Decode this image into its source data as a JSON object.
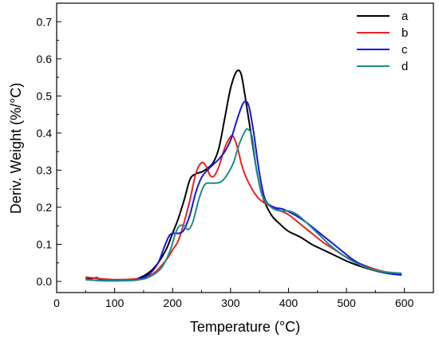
{
  "chart_data": {
    "type": "line",
    "title": "",
    "xlabel": "Temperature (°C)",
    "ylabel": "Deriv. Weight (%/°C)",
    "xlim": [
      0,
      650
    ],
    "ylim": [
      -0.03,
      0.75
    ],
    "xticks": [
      0,
      100,
      200,
      300,
      400,
      500,
      600
    ],
    "yticks": [
      0.0,
      0.1,
      0.2,
      0.3,
      0.4,
      0.5,
      0.6,
      0.7
    ],
    "grid": false,
    "legend_position": "top-right",
    "series": [
      {
        "name": "a",
        "color": "#000000",
        "points": [
          [
            50,
            0.01
          ],
          [
            60,
            0.008
          ],
          [
            70,
            0.01
          ],
          [
            75,
            0.006
          ],
          [
            100,
            0.004
          ],
          [
            120,
            0.004
          ],
          [
            140,
            0.008
          ],
          [
            160,
            0.025
          ],
          [
            175,
            0.05
          ],
          [
            190,
            0.09
          ],
          [
            200,
            0.13
          ],
          [
            210,
            0.17
          ],
          [
            220,
            0.22
          ],
          [
            230,
            0.275
          ],
          [
            240,
            0.29
          ],
          [
            250,
            0.295
          ],
          [
            260,
            0.305
          ],
          [
            270,
            0.32
          ],
          [
            280,
            0.36
          ],
          [
            290,
            0.44
          ],
          [
            300,
            0.52
          ],
          [
            310,
            0.565
          ],
          [
            318,
            0.56
          ],
          [
            325,
            0.5
          ],
          [
            335,
            0.4
          ],
          [
            345,
            0.3
          ],
          [
            355,
            0.23
          ],
          [
            370,
            0.18
          ],
          [
            385,
            0.155
          ],
          [
            400,
            0.135
          ],
          [
            420,
            0.12
          ],
          [
            440,
            0.1
          ],
          [
            460,
            0.085
          ],
          [
            480,
            0.07
          ],
          [
            500,
            0.055
          ],
          [
            520,
            0.043
          ],
          [
            540,
            0.033
          ],
          [
            560,
            0.025
          ],
          [
            580,
            0.02
          ],
          [
            595,
            0.018
          ]
        ]
      },
      {
        "name": "b",
        "color": "#e8231f",
        "points": [
          [
            50,
            0.012
          ],
          [
            70,
            0.008
          ],
          [
            100,
            0.005
          ],
          [
            130,
            0.006
          ],
          [
            150,
            0.01
          ],
          [
            170,
            0.025
          ],
          [
            190,
            0.06
          ],
          [
            200,
            0.085
          ],
          [
            210,
            0.11
          ],
          [
            220,
            0.16
          ],
          [
            230,
            0.22
          ],
          [
            240,
            0.29
          ],
          [
            250,
            0.32
          ],
          [
            258,
            0.31
          ],
          [
            265,
            0.285
          ],
          [
            272,
            0.285
          ],
          [
            280,
            0.31
          ],
          [
            290,
            0.36
          ],
          [
            300,
            0.39
          ],
          [
            305,
            0.39
          ],
          [
            312,
            0.36
          ],
          [
            320,
            0.31
          ],
          [
            330,
            0.27
          ],
          [
            345,
            0.23
          ],
          [
            360,
            0.21
          ],
          [
            380,
            0.195
          ],
          [
            400,
            0.18
          ],
          [
            420,
            0.155
          ],
          [
            440,
            0.13
          ],
          [
            460,
            0.105
          ],
          [
            480,
            0.085
          ],
          [
            500,
            0.065
          ],
          [
            520,
            0.05
          ],
          [
            540,
            0.038
          ],
          [
            560,
            0.028
          ],
          [
            580,
            0.022
          ],
          [
            595,
            0.02
          ]
        ]
      },
      {
        "name": "c",
        "color": "#1414e8",
        "points": [
          [
            50,
            0.005
          ],
          [
            80,
            0.002
          ],
          [
            110,
            0.002
          ],
          [
            140,
            0.005
          ],
          [
            160,
            0.02
          ],
          [
            175,
            0.05
          ],
          [
            185,
            0.09
          ],
          [
            195,
            0.125
          ],
          [
            205,
            0.13
          ],
          [
            212,
            0.13
          ],
          [
            220,
            0.14
          ],
          [
            230,
            0.18
          ],
          [
            240,
            0.24
          ],
          [
            250,
            0.28
          ],
          [
            260,
            0.3
          ],
          [
            270,
            0.315
          ],
          [
            280,
            0.33
          ],
          [
            290,
            0.35
          ],
          [
            300,
            0.38
          ],
          [
            310,
            0.43
          ],
          [
            320,
            0.475
          ],
          [
            326,
            0.485
          ],
          [
            332,
            0.47
          ],
          [
            340,
            0.4
          ],
          [
            350,
            0.29
          ],
          [
            360,
            0.22
          ],
          [
            375,
            0.2
          ],
          [
            390,
            0.195
          ],
          [
            410,
            0.18
          ],
          [
            430,
            0.16
          ],
          [
            450,
            0.135
          ],
          [
            470,
            0.11
          ],
          [
            490,
            0.085
          ],
          [
            510,
            0.06
          ],
          [
            530,
            0.042
          ],
          [
            550,
            0.03
          ],
          [
            570,
            0.022
          ],
          [
            595,
            0.017
          ]
        ]
      },
      {
        "name": "d",
        "color": "#1e8c86",
        "points": [
          [
            50,
            0.005
          ],
          [
            80,
            0.002
          ],
          [
            110,
            0.002
          ],
          [
            140,
            0.004
          ],
          [
            160,
            0.012
          ],
          [
            180,
            0.035
          ],
          [
            195,
            0.08
          ],
          [
            205,
            0.13
          ],
          [
            212,
            0.15
          ],
          [
            220,
            0.15
          ],
          [
            227,
            0.14
          ],
          [
            235,
            0.16
          ],
          [
            245,
            0.22
          ],
          [
            255,
            0.26
          ],
          [
            265,
            0.265
          ],
          [
            275,
            0.265
          ],
          [
            285,
            0.27
          ],
          [
            295,
            0.29
          ],
          [
            305,
            0.32
          ],
          [
            315,
            0.37
          ],
          [
            325,
            0.405
          ],
          [
            330,
            0.41
          ],
          [
            337,
            0.39
          ],
          [
            345,
            0.3
          ],
          [
            355,
            0.23
          ],
          [
            370,
            0.2
          ],
          [
            385,
            0.19
          ],
          [
            400,
            0.19
          ],
          [
            415,
            0.18
          ],
          [
            430,
            0.16
          ],
          [
            450,
            0.13
          ],
          [
            470,
            0.1
          ],
          [
            490,
            0.075
          ],
          [
            510,
            0.055
          ],
          [
            530,
            0.04
          ],
          [
            550,
            0.03
          ],
          [
            570,
            0.025
          ],
          [
            595,
            0.022
          ]
        ]
      }
    ]
  }
}
